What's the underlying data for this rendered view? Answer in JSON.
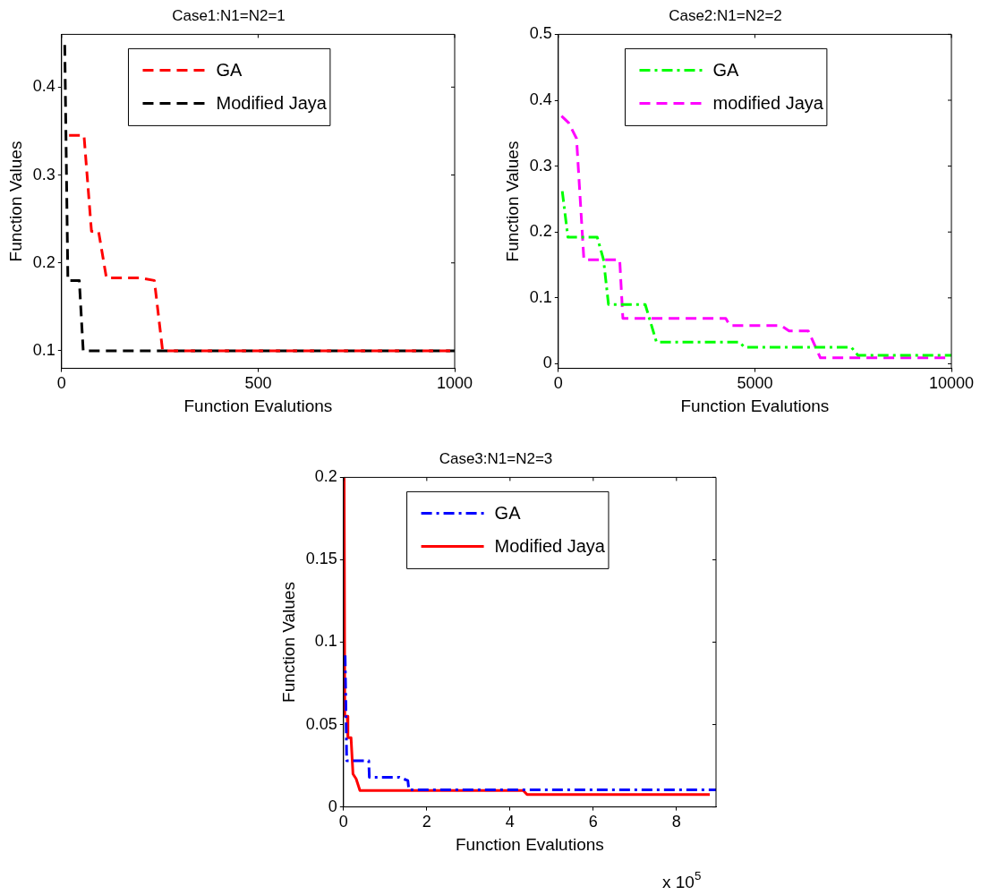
{
  "chart_data": [
    {
      "type": "line",
      "title": "Case1:N1=N2=1",
      "xlabel": "Function Evalutions",
      "ylabel": "Function Values",
      "xlim": [
        0,
        1000
      ],
      "xticks": [
        0,
        500,
        1000
      ],
      "ylim": [
        0.08,
        0.46
      ],
      "yticks": [
        0.1,
        0.2,
        0.3,
        0.4
      ],
      "legend": "top",
      "grid": false,
      "series": [
        {
          "name": "GA",
          "color": "#ff0000",
          "line_style": "dashed",
          "x": [
            19,
            57,
            76,
            94,
            114,
            198,
            236,
            257,
            1000
          ],
          "values": [
            0.345,
            0.345,
            0.236,
            0.236,
            0.183,
            0.183,
            0.18,
            0.1,
            0.1
          ]
        },
        {
          "name": "Modified Jaya",
          "color": "#000000",
          "line_style": "dashed",
          "x": [
            8,
            16,
            45,
            55,
            1000
          ],
          "values": [
            0.448,
            0.18,
            0.18,
            0.1,
            0.1
          ]
        }
      ]
    },
    {
      "type": "line",
      "title": "Case2:N1=N2=2",
      "xlabel": "Function Evalutions",
      "ylabel": "Function Values",
      "xlim": [
        0,
        10000
      ],
      "xticks": [
        0,
        5000,
        10000
      ],
      "ylim": [
        -0.007,
        0.5
      ],
      "yticks": [
        0,
        0.1,
        0.2,
        0.3,
        0.4,
        0.5
      ],
      "legend": "top",
      "grid": false,
      "series": [
        {
          "name": "GA",
          "color": "#00ff00",
          "line_style": "dashdot",
          "x": [
            100,
            244,
            990,
            1150,
            1276,
            2211,
            2496,
            4610,
            4730,
            7455,
            7618,
            10000
          ],
          "values": [
            0.262,
            0.192,
            0.192,
            0.158,
            0.09,
            0.09,
            0.033,
            0.033,
            0.025,
            0.025,
            0.013,
            0.013
          ]
        },
        {
          "name": "modified Jaya",
          "color": "#ff00ff",
          "line_style": "dashed",
          "x": [
            81,
            260,
            463,
            650,
            1561,
            1642,
            4260,
            4366,
            5667,
            5870,
            6358,
            6667,
            10000
          ],
          "values": [
            0.376,
            0.366,
            0.342,
            0.158,
            0.158,
            0.069,
            0.069,
            0.058,
            0.058,
            0.05,
            0.05,
            0.009,
            0.009
          ]
        }
      ]
    },
    {
      "type": "line",
      "title": "Case3:N1=N2=3",
      "xlabel": "Function Evalutions",
      "ylabel": "Function Values",
      "xlim": [
        0,
        8.95
      ],
      "xticks": [
        0,
        2,
        4,
        6,
        8
      ],
      "ylim": [
        0,
        0.2
      ],
      "yticks": [
        0,
        0.05,
        0.1,
        0.15,
        0.2
      ],
      "legend": "top",
      "grid": false,
      "annotations": [
        "x 10$^{5}$"
      ],
      "series": [
        {
          "name": "GA",
          "color": "#0000ff",
          "line_style": "dashdot",
          "x": [
            0.038,
            0.076,
            0.606,
            0.62,
            1.34,
            1.545,
            1.57,
            8.95
          ],
          "values": [
            0.092,
            0.028,
            0.028,
            0.018,
            0.018,
            0.016,
            0.0104,
            0.0104
          ]
        },
        {
          "name": "Modified Jaya",
          "color": "#ff0000",
          "line_style": "solid",
          "x": [
            0.015,
            0.03,
            0.09,
            0.105,
            0.18,
            0.227,
            0.303,
            0.394,
            4.318,
            4.41,
            8.8
          ],
          "values": [
            0.2,
            0.055,
            0.055,
            0.042,
            0.042,
            0.02,
            0.017,
            0.01,
            0.01,
            0.0075,
            0.0075
          ]
        }
      ]
    }
  ]
}
